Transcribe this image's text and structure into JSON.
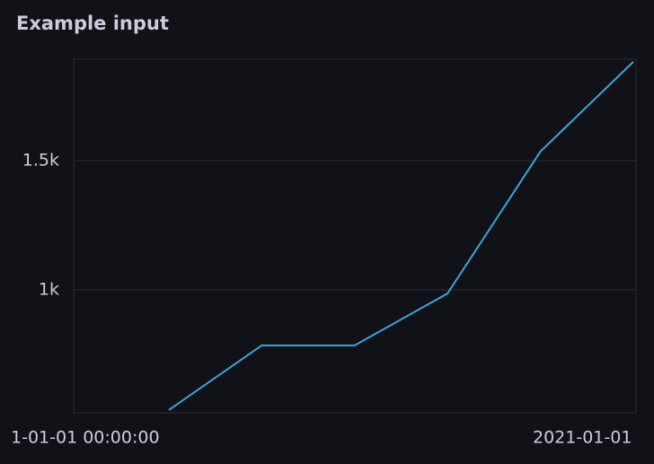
{
  "chart_data": {
    "type": "line",
    "title": "Example input",
    "x_labels": [
      "1-01-01 00:00:00",
      "2021-01-01"
    ],
    "series": [
      {
        "color": "#3aa4dd",
        "values": [
          535,
          785,
          785,
          986,
          1535,
          1882
        ]
      }
    ],
    "ylim": [
      524,
      1892
    ],
    "yticks": [
      {
        "value": 1000,
        "label": "1k"
      },
      {
        "value": 1500,
        "label": "1.5k"
      }
    ],
    "grid": true
  }
}
